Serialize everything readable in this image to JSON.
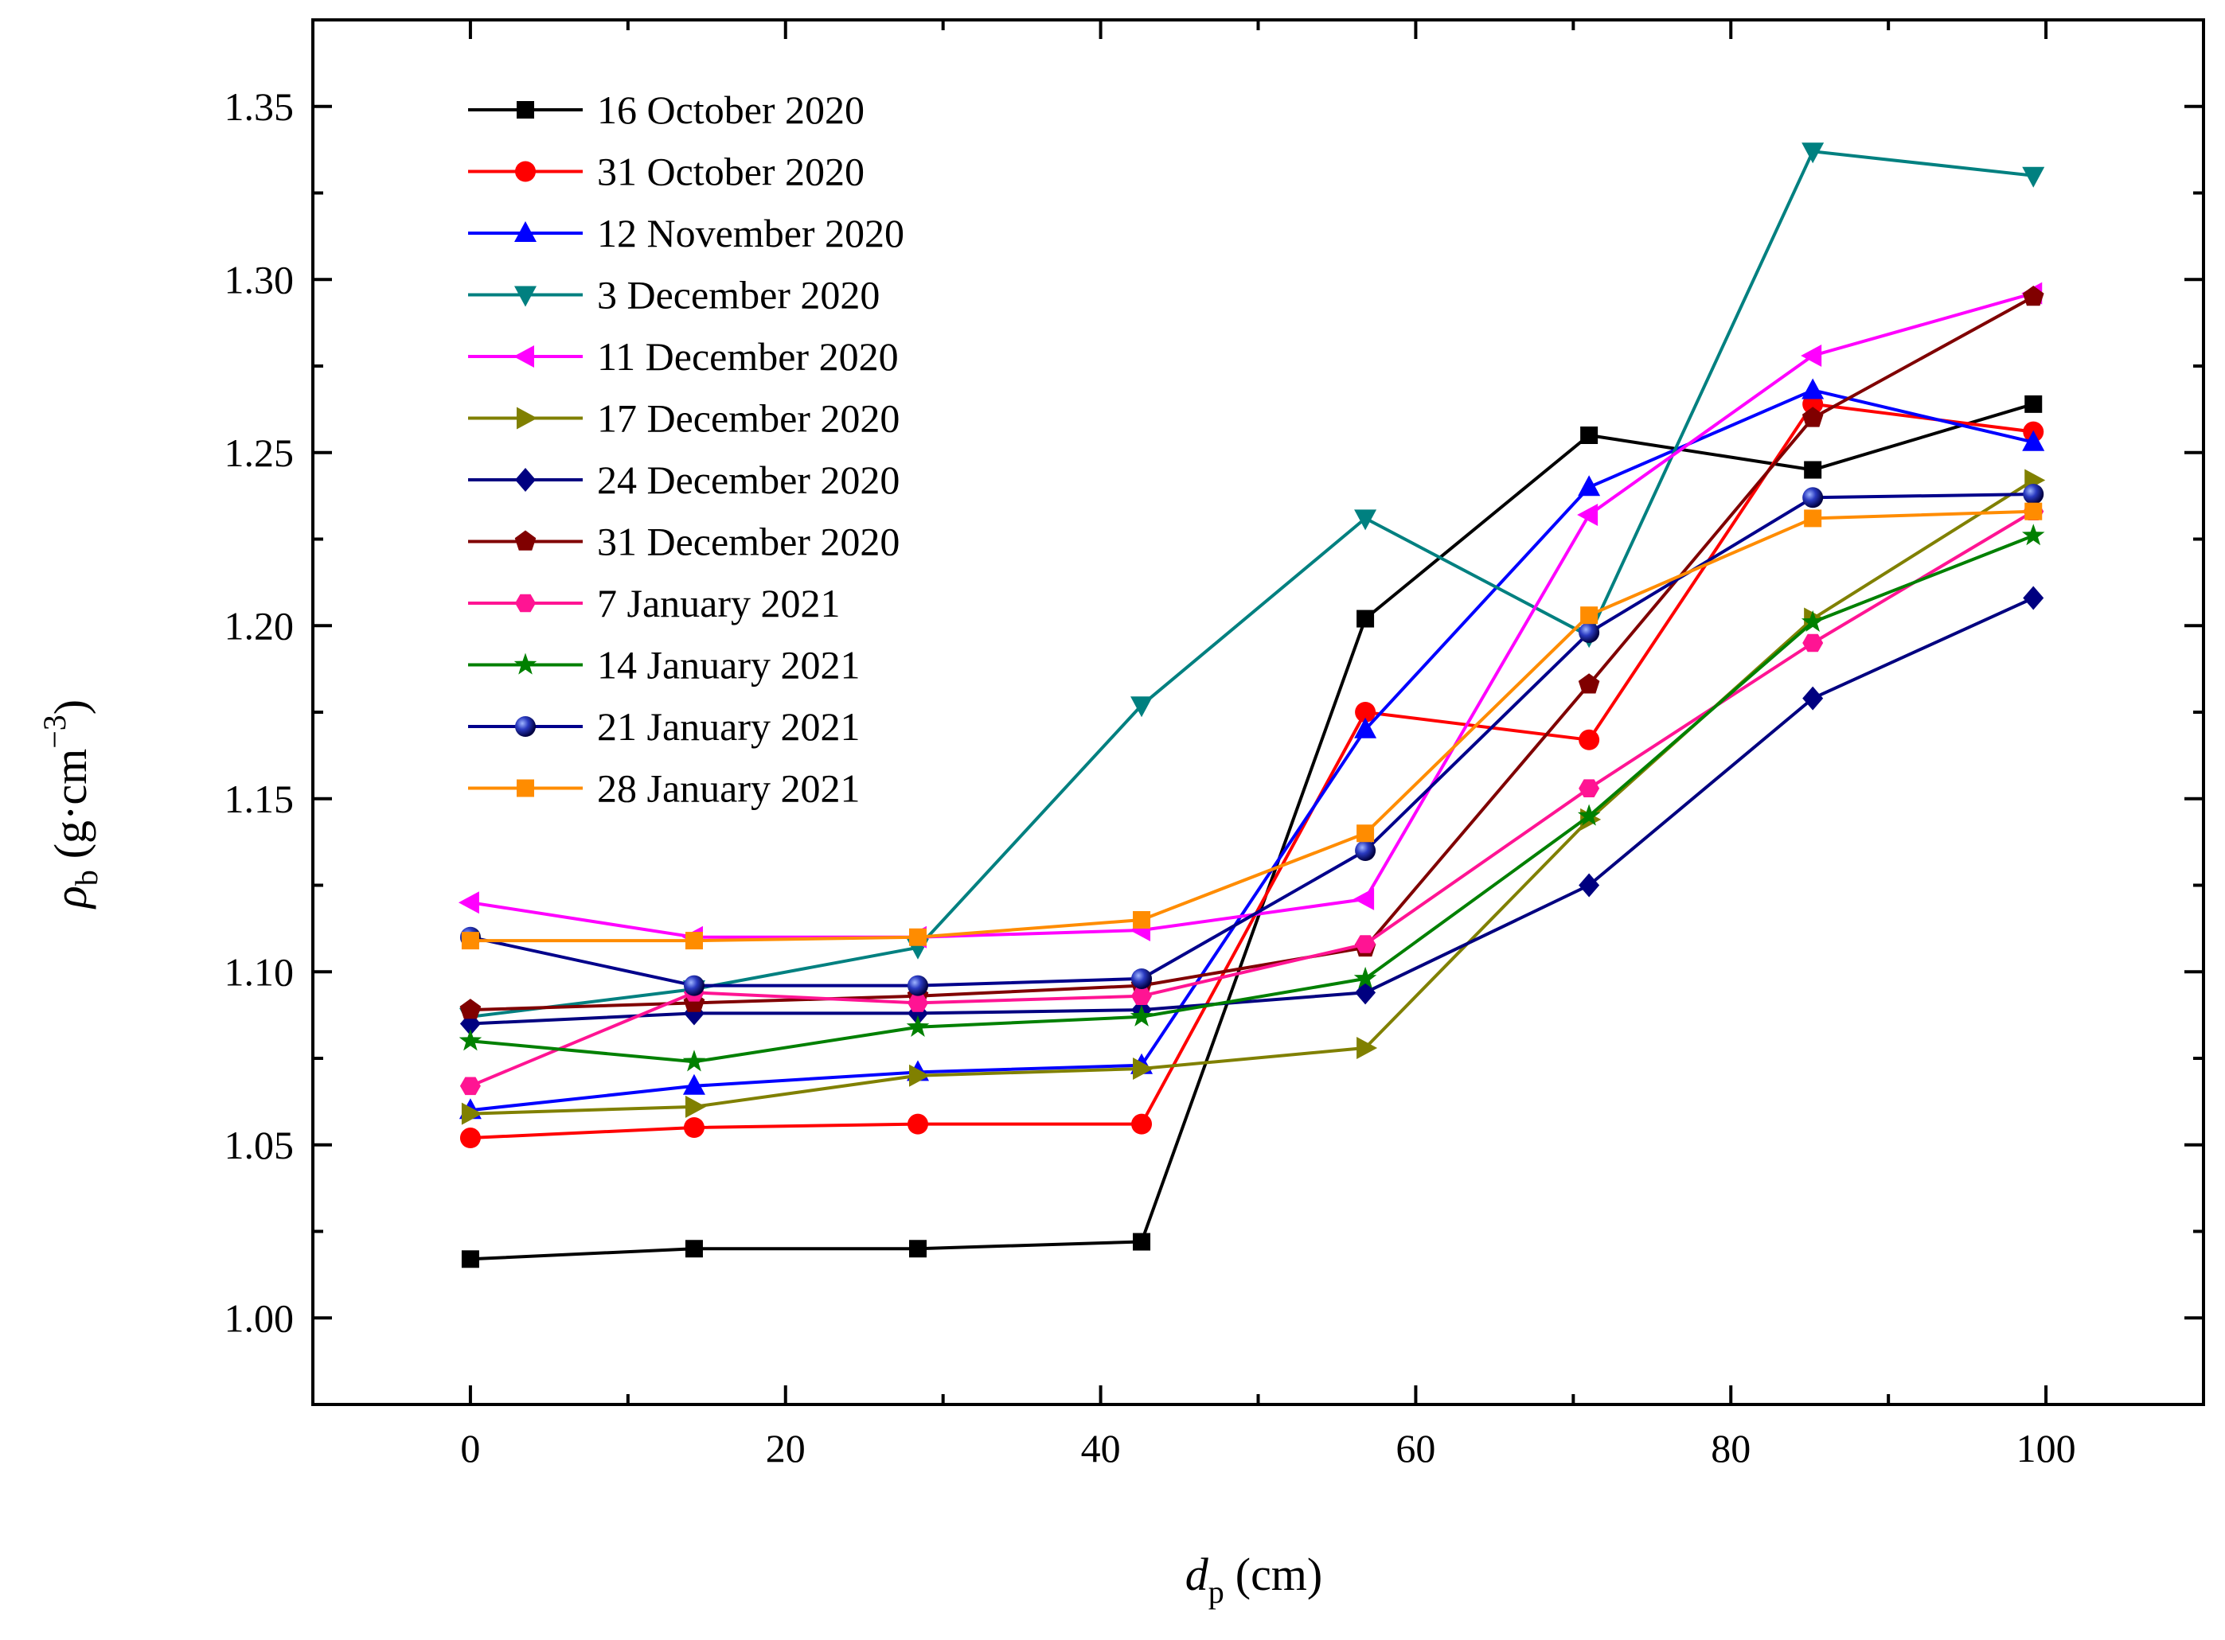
{
  "chart_data": {
    "type": "line",
    "xlabel": {
      "symbol": "d",
      "subscript": "p",
      "unit": "(cm)"
    },
    "ylabel": {
      "symbol": "ρ",
      "subscript": "b",
      "unit_prefix": "(g·cm",
      "unit_exponent": "−3",
      "unit_suffix": ")"
    },
    "xlim": [
      -10,
      110
    ],
    "ylim": [
      0.975,
      1.375
    ],
    "x_ticks": [
      0,
      20,
      40,
      60,
      80,
      100
    ],
    "x_tick_labels": [
      "0",
      "20",
      "40",
      "60",
      "80",
      "100"
    ],
    "x_minor_ticks": [
      -10,
      10,
      30,
      50,
      70,
      90,
      110
    ],
    "y_ticks": [
      1.0,
      1.05,
      1.1,
      1.15,
      1.2,
      1.25,
      1.3,
      1.35
    ],
    "y_tick_labels": [
      "1.00",
      "1.05",
      "1.10",
      "1.15",
      "1.20",
      "1.25",
      "1.30",
      "1.35"
    ],
    "y_minor_ticks": [
      1.025,
      1.075,
      1.125,
      1.175,
      1.225,
      1.275,
      1.325
    ],
    "grid": false,
    "legend_position": "top-left",
    "x": [
      0,
      14.2,
      28.4,
      42.6,
      56.8,
      71.0,
      85.2,
      99.2
    ],
    "series": [
      {
        "name": "16 October 2020",
        "color": "#000000",
        "marker": "square",
        "values": [
          1.017,
          1.02,
          1.02,
          1.022,
          1.202,
          1.255,
          1.245,
          1.264
        ]
      },
      {
        "name": "31 October 2020",
        "color": "#ff0000",
        "marker": "circle",
        "values": [
          1.052,
          1.055,
          1.056,
          1.056,
          1.175,
          1.167,
          1.264,
          1.256
        ]
      },
      {
        "name": "12 November 2020",
        "color": "#0000ff",
        "marker": "triangle-up",
        "values": [
          1.06,
          1.067,
          1.071,
          1.073,
          1.17,
          1.24,
          1.268,
          1.253
        ]
      },
      {
        "name": "3 December 2020",
        "color": "#008080",
        "marker": "triangle-down",
        "values": [
          1.087,
          1.095,
          1.107,
          1.177,
          1.231,
          1.197,
          1.337,
          1.33
        ]
      },
      {
        "name": "11 December 2020",
        "color": "#ff00ff",
        "marker": "triangle-left",
        "values": [
          1.12,
          1.11,
          1.11,
          1.112,
          1.121,
          1.232,
          1.278,
          1.296
        ]
      },
      {
        "name": "17 December 2020",
        "color": "#808000",
        "marker": "triangle-right",
        "values": [
          1.059,
          1.061,
          1.07,
          1.072,
          1.078,
          1.144,
          1.202,
          1.242
        ]
      },
      {
        "name": "24 December 2020",
        "color": "#000080",
        "marker": "diamond",
        "values": [
          1.085,
          1.088,
          1.088,
          1.089,
          1.094,
          1.125,
          1.179,
          1.208
        ]
      },
      {
        "name": "31 December 2020",
        "color": "#800000",
        "marker": "pentagon",
        "values": [
          1.089,
          1.091,
          1.093,
          1.096,
          1.107,
          1.183,
          1.26,
          1.295
        ]
      },
      {
        "name": "7 January 2021",
        "color": "#ff1493",
        "marker": "hexagon",
        "values": [
          1.067,
          1.094,
          1.091,
          1.093,
          1.108,
          1.153,
          1.195,
          1.233
        ]
      },
      {
        "name": "14 January 2021",
        "color": "#008000",
        "marker": "star",
        "values": [
          1.08,
          1.074,
          1.084,
          1.087,
          1.098,
          1.145,
          1.201,
          1.226
        ]
      },
      {
        "name": "21 January 2021",
        "color": "#00008b",
        "marker": "sphere",
        "values": [
          1.11,
          1.096,
          1.096,
          1.098,
          1.135,
          1.198,
          1.237,
          1.238
        ]
      },
      {
        "name": "28 January 2021",
        "color": "#ff8c00",
        "marker": "square",
        "values": [
          1.109,
          1.109,
          1.11,
          1.115,
          1.14,
          1.203,
          1.231,
          1.233
        ]
      }
    ]
  }
}
